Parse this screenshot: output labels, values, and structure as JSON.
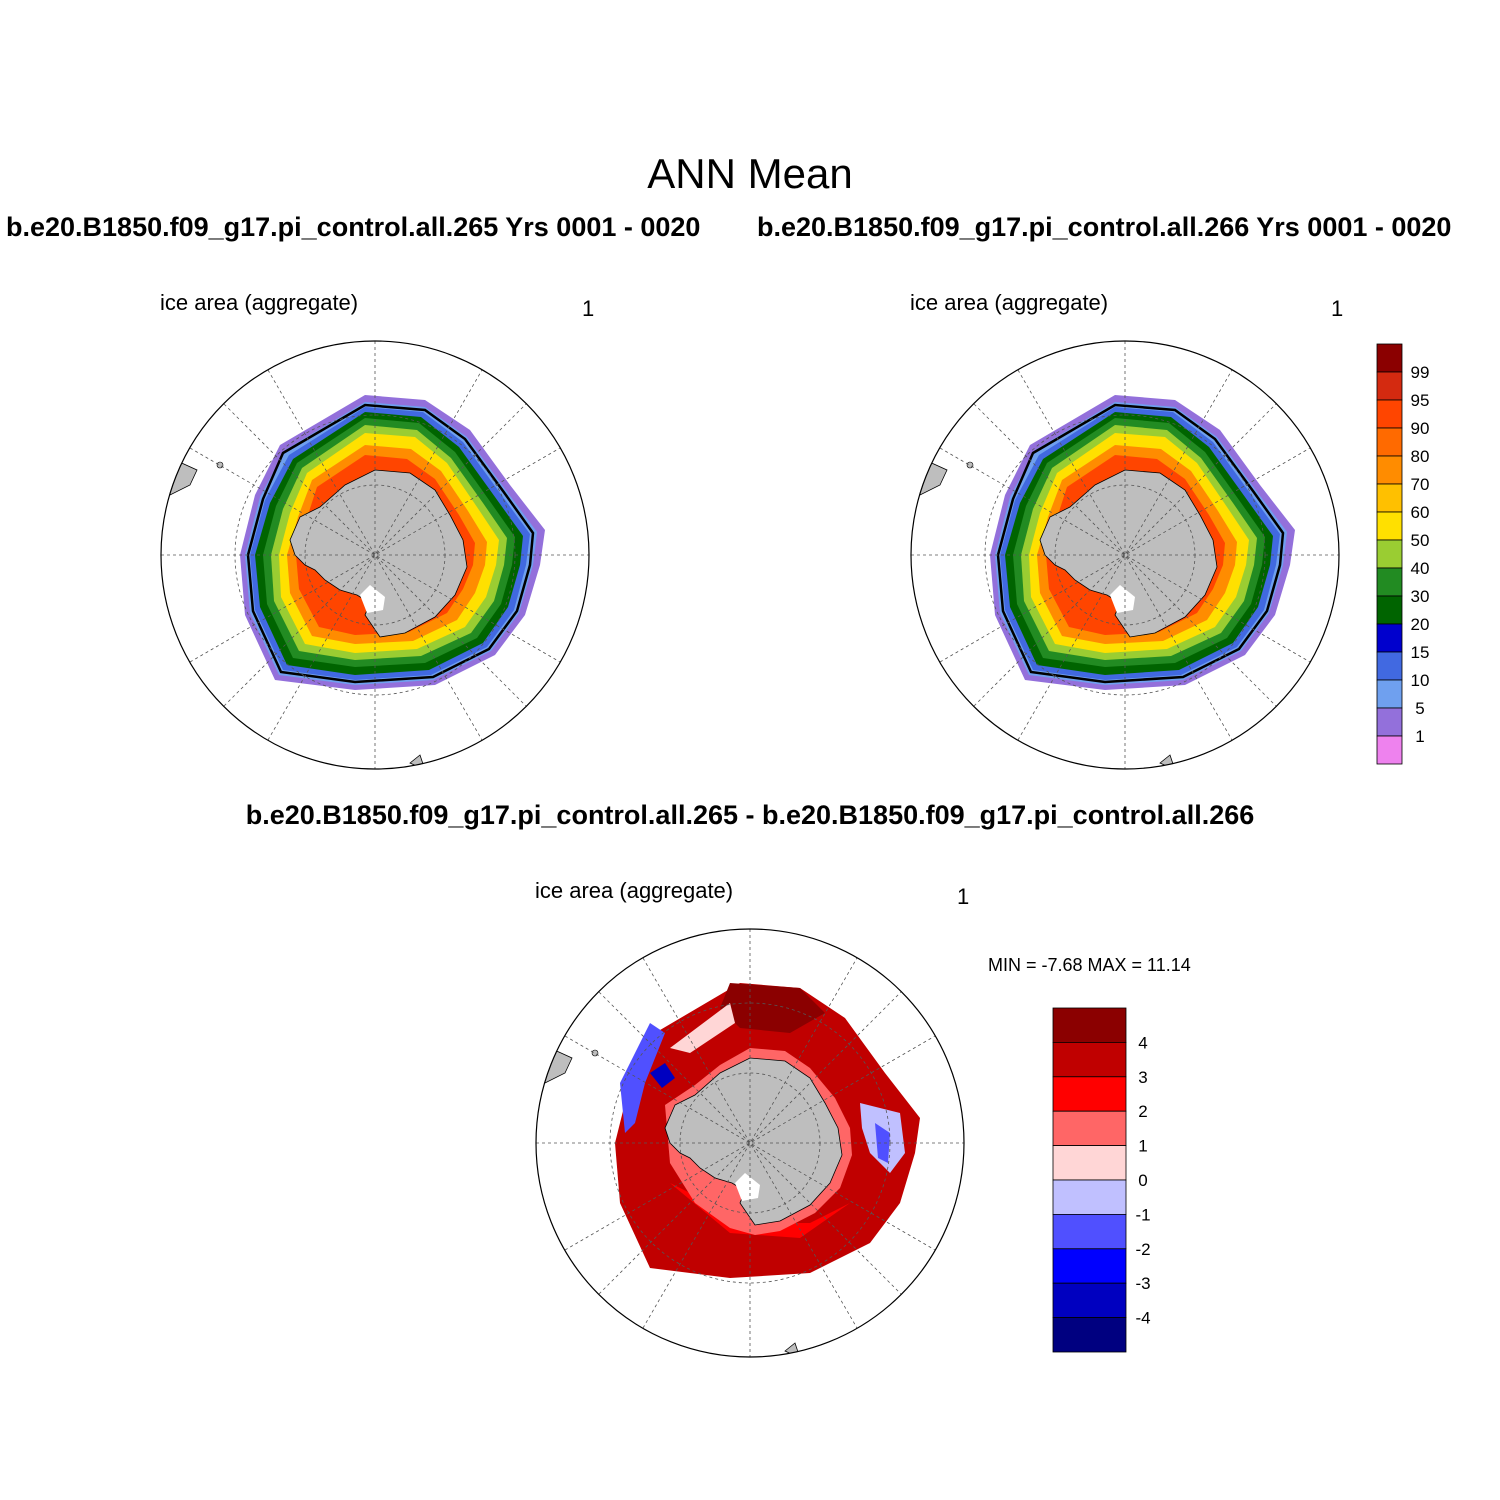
{
  "main_title": "ANN Mean",
  "panels": [
    {
      "case_title": "b.e20.B1850.f09_g17.pi_control.all.265  Yrs 0001 - 0020",
      "variable_label": "ice area  (aggregate)",
      "units_label": "1"
    },
    {
      "case_title": "b.e20.B1850.f09_g17.pi_control.all.266  Yrs 0001 - 0020",
      "variable_label": "ice area  (aggregate)",
      "units_label": "1"
    }
  ],
  "difference_panel": {
    "title": "b.e20.B1850.f09_g17.pi_control.all.265 - b.e20.B1850.f09_g17.pi_control.all.266",
    "variable_label": "ice area  (aggregate)",
    "units_label": "1",
    "min_max_label": "MIN =  -7.68 MAX =  11.14"
  },
  "colorbar_main": {
    "labels": [
      "99",
      "95",
      "90",
      "80",
      "70",
      "60",
      "50",
      "40",
      "30",
      "20",
      "15",
      "10",
      "5",
      "1"
    ],
    "colors": [
      "#8b0000",
      "#d42a10",
      "#ff4500",
      "#ff6a00",
      "#ff8c00",
      "#ffc000",
      "#ffe000",
      "#9acd32",
      "#228b22",
      "#006400",
      "#0000cd",
      "#4169e1",
      "#6fa0ef",
      "#9370db",
      "#ee82ee"
    ]
  },
  "colorbar_diff": {
    "labels": [
      "4",
      "3",
      "2",
      "1",
      "0",
      "-1",
      "-2",
      "-3",
      "-4"
    ],
    "colors": [
      "#8b0000",
      "#c00000",
      "#ff0000",
      "#ff6666",
      "#ffd6d6",
      "#c0c0ff",
      "#5050ff",
      "#0000ff",
      "#0000c0",
      "#000080"
    ]
  },
  "land_color": "#bebebe",
  "grid_color": "#000000"
}
